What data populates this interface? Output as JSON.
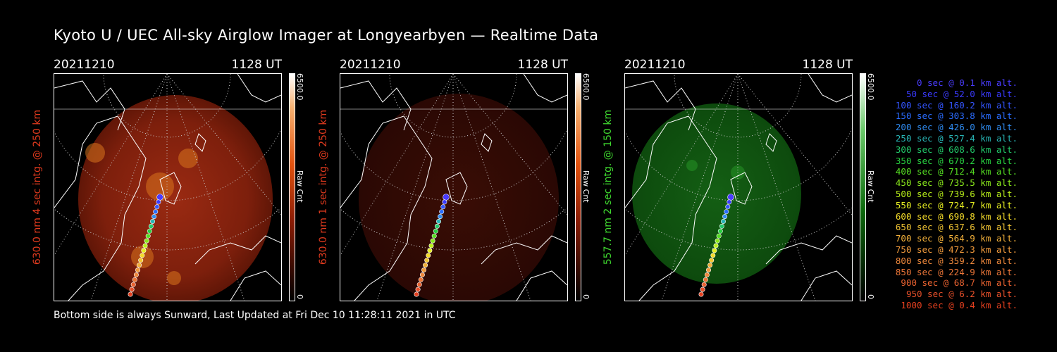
{
  "title": "Kyoto U / UEC All-sky Airglow Imager at Longyearbyen — Realtime Data",
  "footer": "Bottom side is always Sunward, Last Updated at Fri Dec 10 11:28:11 2021 in UTC",
  "panels": [
    {
      "date": "20211210",
      "time": "1128 UT",
      "ylabel": "630.0 nm 4 sec intg. @ 250 km",
      "label_color": "#e03a1e",
      "cbar_max": "6500.0",
      "cbar_unit": "Raw Cnt",
      "cbar_min": "0",
      "glow": "red-bright"
    },
    {
      "date": "20211210",
      "time": "1128 UT",
      "ylabel": "630.0 nm 1 sec intg. @ 250 km",
      "label_color": "#e03a1e",
      "cbar_max": "6500.0",
      "cbar_unit": "Raw Cnt",
      "cbar_min": "0",
      "glow": "red-dim"
    },
    {
      "date": "20211210",
      "time": "1128 UT",
      "ylabel": "557.7 nm 2 sec intg. @ 150 km",
      "label_color": "#3fd82f",
      "cbar_max": "6500.0",
      "cbar_unit": "Raw Cnt",
      "cbar_min": "0",
      "glow": "green"
    }
  ],
  "legend": [
    {
      "sec": "0 sec",
      "alt": "0.1 km alt.",
      "color": "#4a3cff"
    },
    {
      "sec": "50 sec",
      "alt": "52.0 km alt.",
      "color": "#3a3aff"
    },
    {
      "sec": "100 sec",
      "alt": "160.2 km alt.",
      "color": "#3355ff"
    },
    {
      "sec": "150 sec",
      "alt": "303.8 km alt.",
      "color": "#2a6cff"
    },
    {
      "sec": "200 sec",
      "alt": "426.0 km alt.",
      "color": "#2f8cf2"
    },
    {
      "sec": "250 sec",
      "alt": "527.4 km alt.",
      "color": "#28b4b4"
    },
    {
      "sec": "300 sec",
      "alt": "608.6 km alt.",
      "color": "#22c86a"
    },
    {
      "sec": "350 sec",
      "alt": "670.2 km alt.",
      "color": "#28d040"
    },
    {
      "sec": "400 sec",
      "alt": "712.4 km alt.",
      "color": "#55dd22"
    },
    {
      "sec": "450 sec",
      "alt": "735.5 km alt.",
      "color": "#8ae81c"
    },
    {
      "sec": "500 sec",
      "alt": "739.6 km alt.",
      "color": "#b8ef1a"
    },
    {
      "sec": "550 sec",
      "alt": "724.7 km alt.",
      "color": "#e6ee22"
    },
    {
      "sec": "600 sec",
      "alt": "690.8 km alt.",
      "color": "#f5dc2a"
    },
    {
      "sec": "650 sec",
      "alt": "637.6 km alt.",
      "color": "#f3c634"
    },
    {
      "sec": "700 sec",
      "alt": "564.9 km alt.",
      "color": "#f2b03a"
    },
    {
      "sec": "750 sec",
      "alt": "472.3 km alt.",
      "color": "#f09a3c"
    },
    {
      "sec": "800 sec",
      "alt": "359.2 km alt.",
      "color": "#ee883c"
    },
    {
      "sec": "850 sec",
      "alt": "224.9 km alt.",
      "color": "#ec7638"
    },
    {
      "sec": "900 sec",
      "alt": "68.7 km alt.",
      "color": "#ea6230"
    },
    {
      "sec": "950 sec",
      "alt": "6.2 km alt.",
      "color": "#e8502a"
    },
    {
      "sec": "1000 sec",
      "alt": "0.4 km alt.",
      "color": "#e6401f"
    }
  ]
}
